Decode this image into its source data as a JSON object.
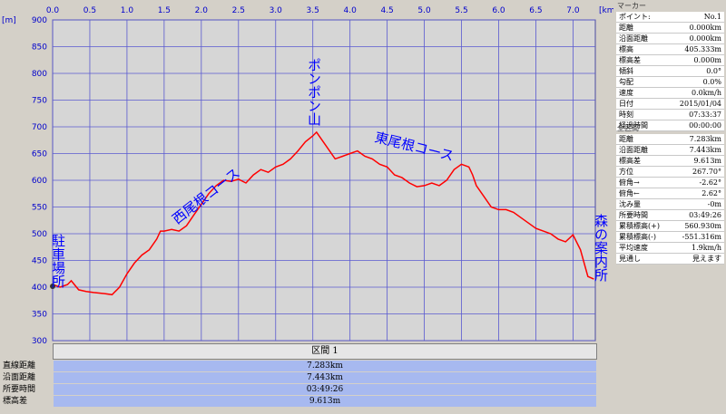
{
  "chart_data": {
    "type": "line",
    "x_unit": "[km]",
    "y_unit": "[m]",
    "xlim": [
      0,
      7.3
    ],
    "ylim": [
      300,
      900
    ],
    "x_ticks": [
      "0.0",
      "0.5",
      "1.0",
      "1.5",
      "2.0",
      "2.5",
      "3.0",
      "3.5",
      "4.0",
      "4.5",
      "5.0",
      "5.5",
      "6.0",
      "6.5",
      "7.0"
    ],
    "y_ticks": [
      "900",
      "850",
      "800",
      "750",
      "700",
      "650",
      "600",
      "550",
      "500",
      "450",
      "400",
      "350",
      "300"
    ],
    "grid": true,
    "series": [
      {
        "x": [
          0.0,
          0.1,
          0.2,
          0.25,
          0.35,
          0.45,
          0.55,
          0.7,
          0.8,
          0.9,
          1.0,
          1.1,
          1.2,
          1.3,
          1.4,
          1.45,
          1.5,
          1.6,
          1.7,
          1.8,
          1.9,
          2.0,
          2.1,
          2.2,
          2.3,
          2.4,
          2.5,
          2.6,
          2.7,
          2.8,
          2.9,
          3.0,
          3.1,
          3.2,
          3.3,
          3.4,
          3.5,
          3.55,
          3.6,
          3.7,
          3.8,
          3.9,
          4.0,
          4.1,
          4.2,
          4.3,
          4.4,
          4.5,
          4.6,
          4.7,
          4.8,
          4.9,
          5.0,
          5.1,
          5.2,
          5.3,
          5.4,
          5.5,
          5.6,
          5.65,
          5.7,
          5.8,
          5.9,
          6.0,
          6.1,
          6.2,
          6.3,
          6.4,
          6.5,
          6.6,
          6.7,
          6.8,
          6.9,
          7.0,
          7.1,
          7.2,
          7.28
        ],
        "y": [
          405,
          400,
          405,
          412,
          395,
          392,
          390,
          388,
          386,
          400,
          425,
          445,
          460,
          470,
          490,
          505,
          505,
          508,
          505,
          515,
          535,
          555,
          575,
          590,
          600,
          598,
          602,
          595,
          610,
          620,
          615,
          625,
          630,
          640,
          655,
          672,
          683,
          690,
          680,
          660,
          640,
          645,
          650,
          655,
          645,
          640,
          630,
          625,
          610,
          605,
          595,
          588,
          590,
          595,
          590,
          600,
          620,
          630,
          625,
          610,
          590,
          570,
          550,
          545,
          545,
          540,
          530,
          520,
          510,
          505,
          500,
          490,
          485,
          498,
          470,
          420,
          415
        ]
      }
    ],
    "annotations": [
      "駐車場所",
      "西尾根コース",
      "ポンポン山",
      "東尾根コース",
      "森の案内所"
    ]
  },
  "section": {
    "header": "区間 1",
    "rows": [
      {
        "label": "直線距離",
        "value": "7.283km"
      },
      {
        "label": "沿面距離",
        "value": "7.443km"
      },
      {
        "label": "所要時間",
        "value": "03:49:26"
      },
      {
        "label": "標高差",
        "value": "9.613m"
      }
    ]
  },
  "panel": {
    "marker_title": "マーカー",
    "marker_rows": [
      {
        "k": "ポイント:",
        "v": "No.1"
      },
      {
        "k": "距離",
        "v": "0.000km"
      },
      {
        "k": "沿面距離",
        "v": "0.000km"
      },
      {
        "k": "標高",
        "v": "405.333m"
      },
      {
        "k": "標高差",
        "v": "0.000m"
      },
      {
        "k": "傾斜",
        "v": "0.0°"
      },
      {
        "k": "勾配",
        "v": "0.0%"
      },
      {
        "k": "速度",
        "v": "0.0km/h"
      },
      {
        "k": "日付",
        "v": "2015/01/04"
      },
      {
        "k": "時刻",
        "v": "07:33:37"
      },
      {
        "k": "経過時間",
        "v": "00:00:00"
      }
    ],
    "all_title": "全区間",
    "all_rows": [
      {
        "k": "距離",
        "v": "7.283km"
      },
      {
        "k": "沿面距離",
        "v": "7.443km"
      },
      {
        "k": "標高差",
        "v": "9.613m"
      },
      {
        "k": "方位",
        "v": "267.70°"
      },
      {
        "k": "俯角→",
        "v": "-2.62°"
      },
      {
        "k": "俯角←",
        "v": "2.62°"
      },
      {
        "k": "沈み量",
        "v": "-0m"
      },
      {
        "k": "所要時間",
        "v": "03:49:26"
      },
      {
        "k": "累積標高(+)",
        "v": "560.930m"
      },
      {
        "k": "累積標高(-)",
        "v": "-551.316m"
      },
      {
        "k": "平均速度",
        "v": "1.9km/h"
      },
      {
        "k": "見通し",
        "v": "見えます"
      }
    ]
  }
}
